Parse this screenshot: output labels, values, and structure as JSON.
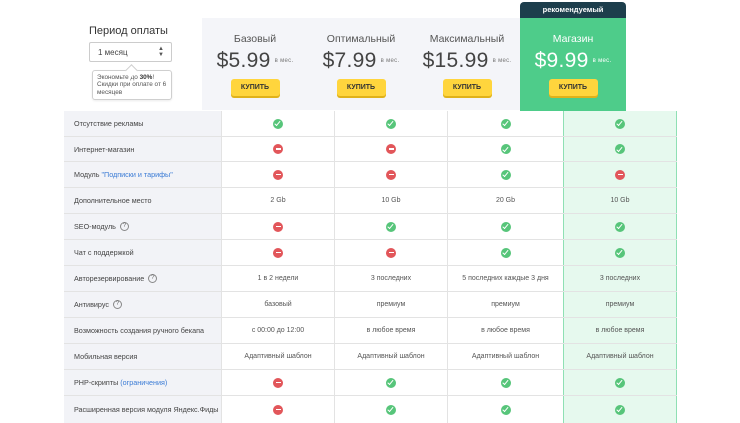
{
  "period": {
    "label": "Период оплаты",
    "selected": "1 месяц",
    "tooltip_prefix": "Экономьте до ",
    "tooltip_percent": "30%",
    "tooltip_suffix": "! Скидки при оплате от 6 месяцев"
  },
  "recommended_label": "рекомендуемый",
  "plans": [
    {
      "name": "Базовый",
      "price": "$5.99",
      "per": "в мес.",
      "buy": "КУПИТЬ"
    },
    {
      "name": "Оптимальный",
      "price": "$7.99",
      "per": "в мес.",
      "buy": "КУПИТЬ"
    },
    {
      "name": "Максимальный",
      "price": "$15.99",
      "per": "в мес.",
      "buy": "КУПИТЬ"
    },
    {
      "name": "Магазин",
      "price": "$9.99",
      "per": "в мес.",
      "buy": "КУПИТЬ"
    }
  ],
  "features": [
    {
      "name": "Отсутствие рекламы",
      "values": [
        "yes",
        "yes",
        "yes",
        "yes"
      ]
    },
    {
      "name": "Интернет-магазин",
      "values": [
        "no",
        "no",
        "yes",
        "yes"
      ]
    },
    {
      "name": "Модуль ",
      "link": "\"Подписки и тарифы\"",
      "values": [
        "no",
        "no",
        "yes",
        "no"
      ]
    },
    {
      "name": "Дополнительное место",
      "values": [
        "2 Gb",
        "10 Gb",
        "20 Gb",
        "10 Gb"
      ]
    },
    {
      "name": "SEO-модуль",
      "help": true,
      "values": [
        "no",
        "yes",
        "yes",
        "yes"
      ]
    },
    {
      "name": "Чат с поддержкой",
      "values": [
        "no",
        "no",
        "yes",
        "yes"
      ]
    },
    {
      "name": "Авторезервирование",
      "help": true,
      "values": [
        "1 в 2 недели",
        "3 последних",
        "5 последних каждые 3 дня",
        "3 последних"
      ]
    },
    {
      "name": "Антивирус",
      "help": true,
      "values": [
        "базовый",
        "премиум",
        "премиум",
        "премиум"
      ]
    },
    {
      "name": "Возможность создания ручного бекапа",
      "values": [
        "с 00:00 до 12:00",
        "в любое время",
        "в любое время",
        "в любое время"
      ]
    },
    {
      "name": "Мобильная версия",
      "values": [
        "Адаптивный шаблон",
        "Адаптивный шаблон",
        "Адаптивный шаблон",
        "Адаптивный шаблон"
      ]
    },
    {
      "name": "PHP-скрипты ",
      "link": "(ограничения)",
      "values": [
        "no",
        "yes",
        "yes",
        "yes"
      ]
    },
    {
      "name": "Расширенная версия модуля Яндекс.Фиды",
      "values": [
        "no",
        "yes",
        "yes",
        "yes"
      ]
    }
  ],
  "help_glyph": "?"
}
